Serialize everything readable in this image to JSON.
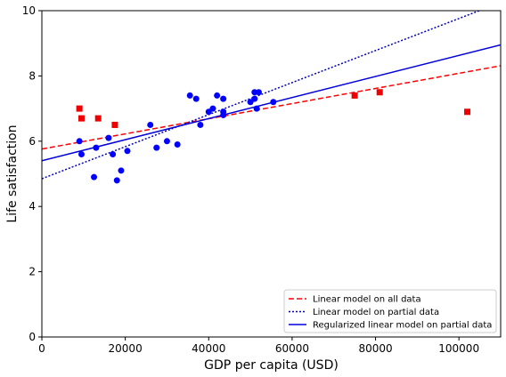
{
  "chart_data": {
    "type": "scatter",
    "xlabel": "GDP per capita (USD)",
    "ylabel": "Life satisfaction",
    "xlim": [
      0,
      110000
    ],
    "ylim": [
      0,
      10
    ],
    "xticks": [
      "0",
      "20000",
      "40000",
      "60000",
      "80000",
      "100000"
    ],
    "xtick_values": [
      0,
      20000,
      40000,
      60000,
      80000,
      100000
    ],
    "yticks": [
      "0",
      "2",
      "4",
      "6",
      "8",
      "10"
    ],
    "ytick_values": [
      0,
      2,
      4,
      6,
      8,
      10
    ],
    "grid": false,
    "legend_position": "lower-right",
    "scatter_series": [
      {
        "marker": "circle",
        "color": "#0000ff",
        "points": [
          [
            9000,
            6.0
          ],
          [
            9500,
            5.6
          ],
          [
            12500,
            4.9
          ],
          [
            13000,
            5.8
          ],
          [
            16000,
            6.1
          ],
          [
            17000,
            5.6
          ],
          [
            18000,
            4.8
          ],
          [
            19000,
            5.1
          ],
          [
            20500,
            5.7
          ],
          [
            26000,
            6.5
          ],
          [
            27500,
            5.8
          ],
          [
            30000,
            6.0
          ],
          [
            32500,
            5.9
          ],
          [
            35500,
            7.4
          ],
          [
            37000,
            7.3
          ],
          [
            38000,
            6.5
          ],
          [
            40000,
            6.9
          ],
          [
            41000,
            7.0
          ],
          [
            42000,
            7.4
          ],
          [
            43500,
            6.9
          ],
          [
            43500,
            6.8
          ],
          [
            43500,
            7.3
          ],
          [
            50000,
            7.2
          ],
          [
            51000,
            7.5
          ],
          [
            51000,
            7.3
          ],
          [
            51500,
            7.0
          ],
          [
            52000,
            7.5
          ],
          [
            55500,
            7.2
          ]
        ]
      },
      {
        "marker": "square",
        "color": "#ee0000",
        "points": [
          [
            9000,
            7.0
          ],
          [
            9500,
            6.7
          ],
          [
            13500,
            6.7
          ],
          [
            17500,
            6.5
          ],
          [
            75000,
            7.4
          ],
          [
            81000,
            7.5
          ],
          [
            102000,
            6.9
          ]
        ]
      }
    ],
    "lines": [
      {
        "name": "Linear model on all data",
        "intercept": 5.76,
        "slope": 2.32e-05,
        "color": "#ff0000",
        "dash": "dashed"
      },
      {
        "name": "Linear model on partial data",
        "intercept": 4.85,
        "slope": 4.91e-05,
        "color": "#0000bb",
        "dash": "dotted"
      },
      {
        "name": "Regularized linear model on partial data",
        "intercept": 5.4,
        "slope": 3.23e-05,
        "color": "#0000dd",
        "dash": "solid"
      }
    ],
    "legend": [
      "Linear model on all data",
      "Linear model on partial data",
      "Regularized linear model on partial data"
    ]
  }
}
